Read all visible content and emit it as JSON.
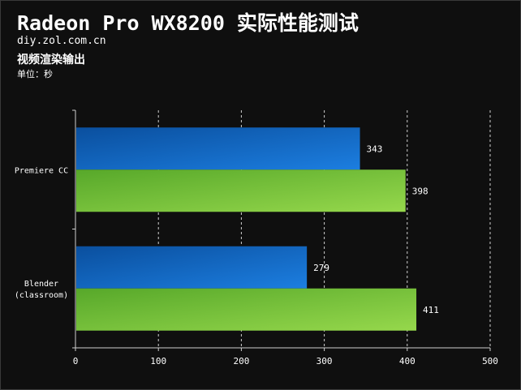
{
  "title": "Radeon Pro WX8200 实际性能测试",
  "site": "diy.zol.com.cn",
  "subtitle": "视频渲染输出",
  "unit_label": "单位：秒",
  "colors": {
    "background": "#0f0f0f",
    "blue_dark": "#0a4f9e",
    "blue_light": "#1c7ee0",
    "green_dark": "#57a82a",
    "green_light": "#96d84c",
    "grid": "#cfcfcf"
  },
  "chart_data": {
    "type": "bar",
    "orientation": "horizontal",
    "categories": [
      {
        "lines": [
          "Premiere CC"
        ]
      },
      {
        "lines": [
          "Blender",
          "(classroom)"
        ]
      }
    ],
    "series": [
      {
        "values": [
          343,
          279
        ],
        "color": "blue"
      },
      {
        "values": [
          398,
          411
        ],
        "color": "green"
      }
    ],
    "xlim": [
      0,
      500
    ],
    "xticks": [
      0,
      100,
      200,
      300,
      400,
      500
    ],
    "grid": "vertical dashed",
    "legend": "none"
  }
}
